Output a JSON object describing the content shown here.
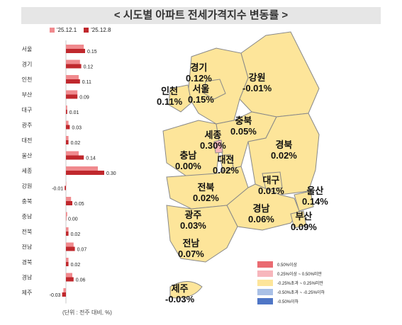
{
  "title": "< 시도별 아파트 전세가격지수 변동률 >",
  "legend": [
    {
      "label": "'25.12.1",
      "color": "#f08a8e"
    },
    {
      "label": "'25.12.8",
      "color": "#c0282d"
    }
  ],
  "unit_note": "(단위 : 전주 대비, %)",
  "chart_data": {
    "type": "bar",
    "orientation": "horizontal",
    "categories": [
      "서울",
      "경기",
      "인천",
      "부산",
      "대구",
      "광주",
      "대전",
      "울산",
      "세종",
      "강원",
      "충북",
      "충남",
      "전북",
      "전남",
      "경북",
      "경남",
      "제주"
    ],
    "series": [
      {
        "name": "'25.12.1",
        "color": "#f08a8e",
        "values": [
          0.14,
          0.11,
          0.1,
          0.09,
          0.01,
          0.02,
          0.02,
          0.1,
          0.25,
          0.0,
          0.04,
          0.01,
          0.02,
          0.06,
          0.02,
          0.05,
          -0.02
        ]
      },
      {
        "name": "'25.12.8",
        "color": "#c0282d",
        "values": [
          0.15,
          0.12,
          0.11,
          0.09,
          0.01,
          0.03,
          0.02,
          0.14,
          0.3,
          -0.01,
          0.05,
          0.0,
          0.02,
          0.07,
          0.02,
          0.06,
          -0.03
        ]
      }
    ],
    "data_labels": [
      "0.15",
      "0.12",
      "0.11",
      "0.09",
      "0.01",
      "0.03",
      "0.02",
      "0.14",
      "0.30",
      "-0.01",
      "0.05",
      "0.00",
      "0.02",
      "0.07",
      "0.02",
      "0.06",
      "-0.03"
    ]
  },
  "map": {
    "regions": [
      {
        "name": "경기",
        "value": "0.12%"
      },
      {
        "name": "강원",
        "value": "-0.01%"
      },
      {
        "name": "인천",
        "value": "0.11%"
      },
      {
        "name": "서울",
        "value": "0.15%"
      },
      {
        "name": "충북",
        "value": "0.05%"
      },
      {
        "name": "세종",
        "value": "0.30%"
      },
      {
        "name": "충남",
        "value": "0.00%"
      },
      {
        "name": "대전",
        "value": "0.02%"
      },
      {
        "name": "경북",
        "value": "0.02%"
      },
      {
        "name": "대구",
        "value": "0.01%"
      },
      {
        "name": "울산",
        "value": "0.14%"
      },
      {
        "name": "전북",
        "value": "0.02%"
      },
      {
        "name": "경남",
        "value": "0.06%"
      },
      {
        "name": "부산",
        "value": "0.09%"
      },
      {
        "name": "광주",
        "value": "0.03%"
      },
      {
        "name": "전남",
        "value": "0.07%"
      },
      {
        "name": "제주",
        "value": "-0.03%"
      }
    ],
    "scale": [
      {
        "label": "0.50%이상",
        "color": "#ea6b72"
      },
      {
        "label": "0.25%이상 ~ 0.50%미만",
        "color": "#f7b6bc"
      },
      {
        "label": "-0.25%초과 ~ 0.25%미만",
        "color": "#fde59a"
      },
      {
        "label": "-0.50%초과 ~ -0.25%이하",
        "color": "#a9c0e6"
      },
      {
        "label": "-0.50%이하",
        "color": "#4f76c6"
      }
    ],
    "colors": {
      "base": "#fde59a",
      "sejong": "#f7b6bc",
      "border": "#888"
    }
  }
}
